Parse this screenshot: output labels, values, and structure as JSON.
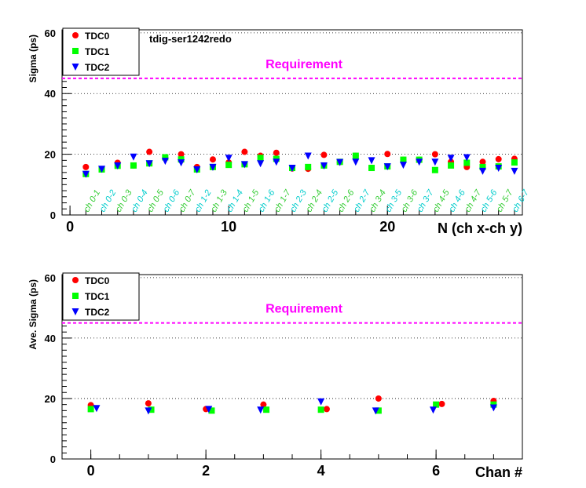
{
  "chart_data": [
    {
      "type": "scatter",
      "title": "",
      "annotation": "tdig-ser1242redo",
      "requirement": {
        "label": "Requirement",
        "value": 45,
        "color": "#ff00ff"
      },
      "xlabel": "N (ch x-ch y)",
      "ylabel": "Sigma (ps)",
      "xlim": [
        -0.5,
        28.5
      ],
      "ylim": [
        0,
        61
      ],
      "x_tick_labels": [
        "0",
        "10",
        "20"
      ],
      "y_tick_labels": [
        "0",
        "20",
        "40",
        "60"
      ],
      "grid": "horizontal dotted",
      "legend_position": "top-left",
      "category_labels": [
        "ch 0-1",
        "ch 0-2",
        "ch 0-3",
        "ch 0-4",
        "ch 0-5",
        "ch 0-6",
        "ch 0-7",
        "ch 1-2",
        "ch 1-3",
        "ch 1-4",
        "ch 1-5",
        "ch 1-6",
        "ch 1-7",
        "ch 2-3",
        "ch 2-4",
        "ch 2-5",
        "ch 2-6",
        "ch 2-7",
        "ch 3-4",
        "ch 3-5",
        "ch 3-6",
        "ch 3-7",
        "ch 4-5",
        "ch 4-6",
        "ch 4-7",
        "ch 5-6",
        "ch 5-7",
        "ch 6-7"
      ],
      "series": [
        {
          "name": "TDC0",
          "marker": "circle",
          "color": "#ff0000",
          "x": [
            1,
            2,
            3,
            4,
            5,
            6,
            7,
            8,
            9,
            10,
            11,
            12,
            13,
            14,
            15,
            16,
            17,
            18,
            19,
            20,
            21,
            22,
            23,
            24,
            25,
            26,
            27,
            28
          ],
          "values": [
            15.8,
            15.0,
            17.2,
            16.3,
            20.8,
            18.8,
            20.0,
            15.8,
            18.3,
            17.3,
            20.8,
            19.5,
            20.5,
            15.3,
            15.2,
            19.8,
            17.4,
            19.5,
            15.5,
            20.1,
            18.2,
            18.2,
            20.0,
            17.5,
            15.8,
            17.5,
            18.4,
            18.5
          ]
        },
        {
          "name": "TDC1",
          "marker": "square",
          "color": "#00ff00",
          "x": [
            1,
            2,
            3,
            4,
            5,
            6,
            7,
            8,
            9,
            10,
            11,
            12,
            13,
            14,
            15,
            16,
            17,
            18,
            19,
            20,
            21,
            22,
            23,
            24,
            25,
            26,
            27,
            28
          ],
          "values": [
            13.5,
            15.0,
            16.2,
            16.3,
            17.0,
            19.0,
            18.3,
            15.0,
            15.8,
            16.5,
            16.7,
            18.8,
            18.5,
            15.5,
            15.8,
            16.3,
            17.5,
            19.5,
            15.5,
            16.0,
            18.2,
            18.2,
            14.8,
            16.3,
            17.2,
            15.8,
            16.0,
            17.3
          ]
        },
        {
          "name": "TDC2",
          "marker": "triangle-down",
          "color": "#0000ff",
          "x": [
            1,
            2,
            3,
            4,
            5,
            6,
            7,
            8,
            9,
            10,
            11,
            12,
            13,
            14,
            15,
            16,
            17,
            18,
            19,
            20,
            21,
            22,
            23,
            24,
            25,
            26,
            27,
            28
          ],
          "values": [
            13.5,
            15.2,
            16.3,
            19.2,
            17.0,
            17.8,
            17.3,
            15.0,
            15.8,
            18.8,
            16.7,
            17.0,
            17.5,
            15.5,
            19.5,
            16.3,
            17.4,
            17.5,
            18.0,
            16.0,
            16.5,
            17.5,
            17.5,
            18.8,
            19.0,
            14.5,
            15.5,
            14.5
          ]
        }
      ]
    },
    {
      "type": "scatter",
      "title": "",
      "requirement": {
        "label": "Requirement",
        "value": 45,
        "color": "#ff00ff"
      },
      "xlabel": "Chan #",
      "ylabel": "Ave. Sigma (ps)",
      "xlim": [
        -0.5,
        7.5
      ],
      "ylim": [
        0,
        61
      ],
      "x_tick_labels": [
        "0",
        "2",
        "4",
        "6"
      ],
      "y_tick_labels": [
        "0",
        "20",
        "40",
        "60"
      ],
      "grid": "horizontal dotted",
      "legend_position": "top-left",
      "series": [
        {
          "name": "TDC0",
          "marker": "circle",
          "color": "#ff0000",
          "x": [
            0.0,
            1.0,
            2.0,
            3.0,
            4.1,
            5.0,
            6.1,
            7.0
          ],
          "values": [
            17.8,
            18.4,
            16.5,
            18.0,
            16.5,
            20.0,
            18.2,
            19.2
          ]
        },
        {
          "name": "TDC1",
          "marker": "square",
          "color": "#00ff00",
          "x": [
            0.0,
            1.05,
            2.1,
            3.05,
            4.0,
            5.0,
            6.0,
            7.0
          ],
          "values": [
            16.5,
            16.3,
            16.0,
            16.3,
            16.3,
            16.0,
            18.0,
            18.0
          ]
        },
        {
          "name": "TDC2",
          "marker": "triangle-down",
          "color": "#0000ff",
          "x": [
            0.1,
            1.0,
            2.05,
            2.95,
            4.0,
            4.95,
            5.95,
            7.0
          ],
          "values": [
            16.8,
            16.0,
            16.5,
            16.3,
            19.0,
            16.0,
            16.3,
            17.0
          ]
        }
      ]
    }
  ]
}
